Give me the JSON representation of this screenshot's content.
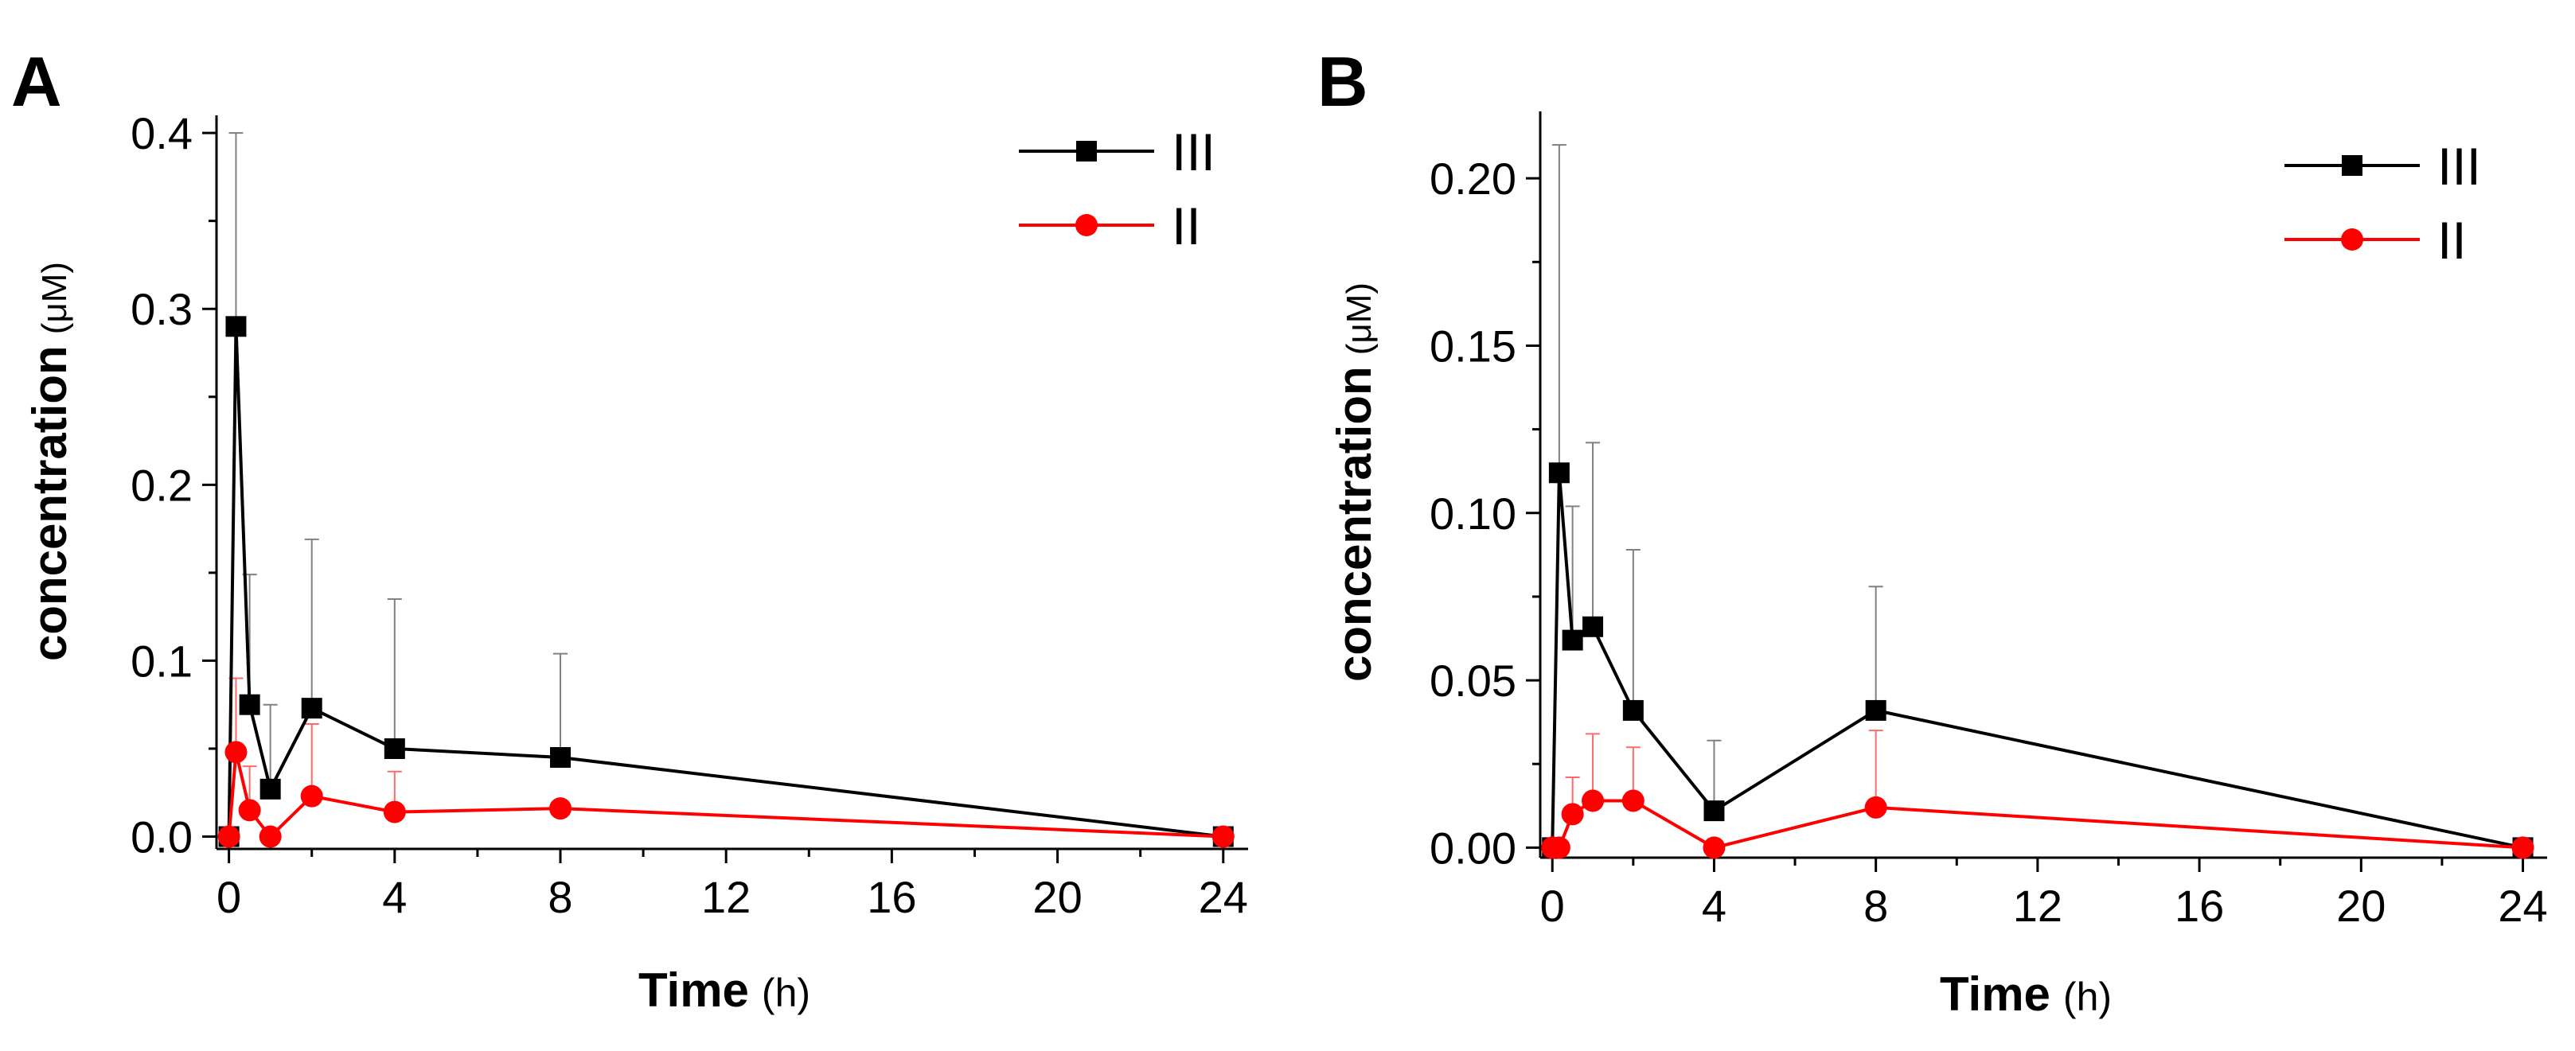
{
  "chart_data": [
    {
      "panel_label": "A",
      "type": "line",
      "xlabel": "Time",
      "xlabel_unit": "(h)",
      "ylabel": "concentration",
      "ylabel_unit": "(μM)",
      "xlim": [
        -0.3,
        24.6
      ],
      "ylim": [
        -0.007,
        0.41
      ],
      "xticks": [
        0,
        4,
        8,
        12,
        16,
        20,
        24
      ],
      "xtick_labels": [
        "0",
        "4",
        "8",
        "12",
        "16",
        "20",
        "24"
      ],
      "yticks": [
        0.0,
        0.1,
        0.2,
        0.3,
        0.4
      ],
      "ytick_labels": [
        "0.0",
        "0.1",
        "0.2",
        "0.3",
        "0.4"
      ],
      "x_minor_ticks": [
        2,
        6,
        10,
        14,
        18,
        22
      ],
      "y_minor_ticks": [
        0.05,
        0.15,
        0.25,
        0.35
      ],
      "legend_position": "top-right",
      "series": [
        {
          "name": "III",
          "color": "#000000",
          "marker": "square",
          "x": [
            0,
            0.17,
            0.5,
            1,
            2,
            4,
            8,
            24
          ],
          "values": [
            0.0,
            0.29,
            0.075,
            0.027,
            0.073,
            0.05,
            0.045,
            0.0
          ],
          "error_upper": [
            0.0,
            0.11,
            0.074,
            0.048,
            0.096,
            0.085,
            0.059,
            0.0
          ]
        },
        {
          "name": "II",
          "color": "#ff0000",
          "marker": "circle",
          "x": [
            0,
            0.17,
            0.5,
            1,
            2,
            4,
            8,
            24
          ],
          "values": [
            0.0,
            0.048,
            0.015,
            0.0,
            0.023,
            0.014,
            0.016,
            0.0
          ],
          "error_upper": [
            0.0,
            0.042,
            0.025,
            0.0,
            0.041,
            0.023,
            0.0,
            0.0
          ]
        }
      ]
    },
    {
      "panel_label": "B",
      "type": "line",
      "xlabel": "Time",
      "xlabel_unit": "(h)",
      "ylabel": "concentration",
      "ylabel_unit": "(μM)",
      "xlim": [
        -0.3,
        24.6
      ],
      "ylim": [
        -0.003,
        0.22
      ],
      "xticks": [
        0,
        4,
        8,
        12,
        16,
        20,
        24
      ],
      "xtick_labels": [
        "0",
        "4",
        "8",
        "12",
        "16",
        "20",
        "24"
      ],
      "yticks": [
        0.0,
        0.05,
        0.1,
        0.15,
        0.2
      ],
      "ytick_labels": [
        "0.00",
        "0.05",
        "0.10",
        "0.15",
        "0.20"
      ],
      "x_minor_ticks": [
        2,
        6,
        10,
        14,
        18,
        22
      ],
      "y_minor_ticks": [
        0.025,
        0.075,
        0.125,
        0.175
      ],
      "legend_position": "top-right",
      "series": [
        {
          "name": "III",
          "color": "#000000",
          "marker": "square",
          "x": [
            0,
            0.17,
            0.5,
            1,
            2,
            4,
            8,
            24
          ],
          "values": [
            0.0,
            0.112,
            0.062,
            0.066,
            0.041,
            0.011,
            0.041,
            0.0
          ],
          "error_upper": [
            0.0,
            0.098,
            0.04,
            0.055,
            0.048,
            0.021,
            0.037,
            0.0
          ]
        },
        {
          "name": "II",
          "color": "#ff0000",
          "marker": "circle",
          "x": [
            0,
            0.17,
            0.5,
            1,
            2,
            4,
            8,
            24
          ],
          "values": [
            0.0,
            0.0,
            0.01,
            0.014,
            0.014,
            0.0,
            0.012,
            0.0
          ],
          "error_upper": [
            0.0,
            0.0,
            0.011,
            0.02,
            0.016,
            0.0,
            0.023,
            0.0
          ]
        }
      ]
    }
  ]
}
